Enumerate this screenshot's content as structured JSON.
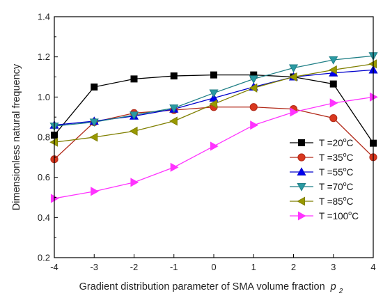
{
  "chart_data": {
    "type": "line",
    "xlabel": "Gradient distribution parameter of SMA volume fraction",
    "xlabel_symbol": "p",
    "xlabel_subscript": "2",
    "ylabel": "Dimensionless natural frequency",
    "xlim": [
      -4,
      4
    ],
    "ylim": [
      0.2,
      1.4
    ],
    "x": [
      -4,
      -3,
      -2,
      -1,
      0,
      1,
      2,
      3,
      4
    ],
    "x_tick_labels": [
      "-4",
      "-3",
      "-2",
      "-1",
      "0",
      "1",
      "2",
      "3",
      "4"
    ],
    "y_ticks": [
      0.2,
      0.4,
      0.6,
      0.8,
      1.0,
      1.2,
      1.4
    ],
    "y_tick_labels": [
      "0.2",
      "0.4",
      "0.6",
      "0.8",
      "1.0",
      "1.2",
      "1.4"
    ],
    "grid": false,
    "legend_position": "bottom-right",
    "series": [
      {
        "name": "T =20°C",
        "label_main": "T =20",
        "label_sup": "o",
        "label_unit": "C",
        "color": "#000000",
        "fill": "#000000",
        "marker": "square",
        "values": [
          0.81,
          1.05,
          1.09,
          1.105,
          1.11,
          1.11,
          1.1,
          1.065,
          0.77
        ]
      },
      {
        "name": "T =35°C",
        "label_main": "T =35",
        "label_sup": "o",
        "label_unit": "C",
        "color": "#b22a1a",
        "fill": "#d9381e",
        "marker": "circle",
        "values": [
          0.69,
          0.875,
          0.92,
          0.935,
          0.95,
          0.95,
          0.94,
          0.895,
          0.7
        ]
      },
      {
        "name": "T =55°C",
        "label_main": "T =55",
        "label_sup": "o",
        "label_unit": "C",
        "color": "#0000cc",
        "fill": "#0000ee",
        "marker": "triangle-up",
        "values": [
          0.86,
          0.88,
          0.905,
          0.94,
          0.995,
          1.05,
          1.1,
          1.12,
          1.135
        ]
      },
      {
        "name": "T =70°C",
        "label_main": "T =70",
        "label_sup": "o",
        "label_unit": "C",
        "color": "#1f7f86",
        "fill": "#2a9aa3",
        "marker": "triangle-down",
        "values": [
          0.855,
          0.875,
          0.91,
          0.945,
          1.02,
          1.09,
          1.145,
          1.185,
          1.205
        ]
      },
      {
        "name": "T =85°C",
        "label_main": "T =85",
        "label_sup": "o",
        "label_unit": "C",
        "color": "#7f7f00",
        "fill": "#999900",
        "marker": "triangle-left",
        "values": [
          0.775,
          0.8,
          0.83,
          0.88,
          0.965,
          1.045,
          1.1,
          1.135,
          1.165
        ]
      },
      {
        "name": "T =100°C",
        "label_main": "T =100",
        "label_sup": "o",
        "label_unit": "C",
        "color": "#ff33ff",
        "fill": "#ff33ff",
        "marker": "triangle-right",
        "values": [
          0.495,
          0.53,
          0.575,
          0.65,
          0.755,
          0.86,
          0.925,
          0.97,
          1.0
        ]
      }
    ]
  }
}
